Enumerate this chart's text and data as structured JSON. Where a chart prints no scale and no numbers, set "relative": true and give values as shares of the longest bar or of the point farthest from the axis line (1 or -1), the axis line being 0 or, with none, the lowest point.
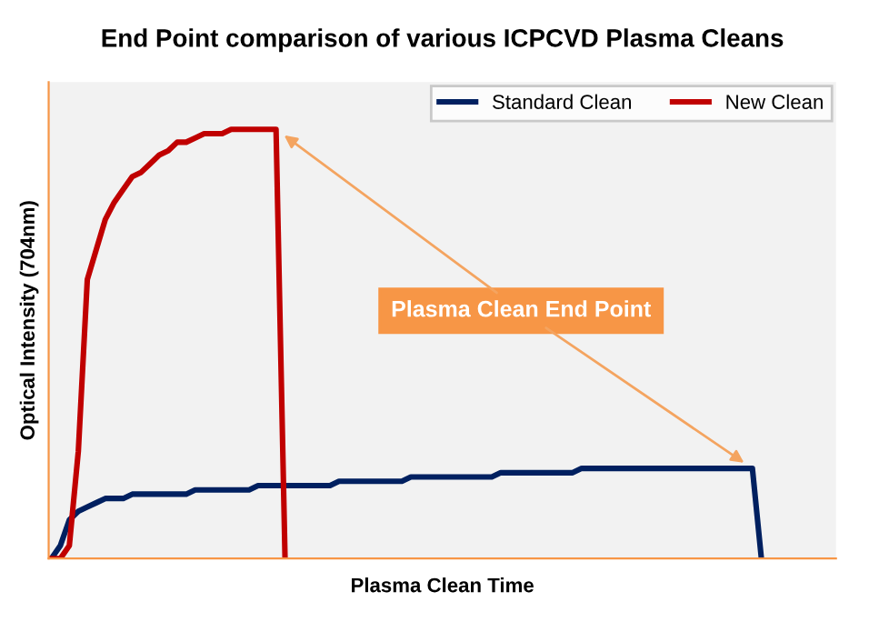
{
  "chart_data": {
    "type": "line",
    "title": "End Point comparison of various ICPCVD Plasma Cleans",
    "xlabel": "Plasma Clean Time",
    "ylabel": "Optical Intensity (704nm)",
    "relative": true,
    "legend": "top right",
    "annotations": [
      "Plasma Clean End Point"
    ],
    "categories": [
      null,
      null,
      null,
      null,
      null,
      null,
      null,
      null,
      null,
      null,
      null,
      null,
      null,
      null,
      null,
      null,
      null,
      null,
      null,
      null,
      null,
      null,
      null,
      null,
      null,
      null,
      null,
      null,
      null,
      null,
      null,
      null,
      null,
      null,
      null,
      null,
      null,
      null,
      null,
      null,
      null,
      null,
      null,
      null,
      null,
      null,
      null,
      null,
      null,
      null,
      null,
      null,
      null,
      null,
      null,
      null,
      null,
      null,
      null,
      null,
      null,
      null,
      null,
      null,
      null,
      null,
      null,
      null,
      null,
      null,
      null,
      null,
      null,
      null,
      null,
      null,
      null,
      null,
      null,
      null,
      null,
      null,
      null,
      null,
      null,
      null,
      null,
      null
    ],
    "series": [
      {
        "name": "Standard Clean",
        "color": "#002060",
        "values": [
          0,
          0.03,
          0.09,
          0.11,
          0.12,
          0.13,
          0.14,
          0.14,
          0.14,
          0.15,
          0.15,
          0.15,
          0.15,
          0.15,
          0.15,
          0.15,
          0.16,
          0.16,
          0.16,
          0.16,
          0.16,
          0.16,
          0.16,
          0.17,
          0.17,
          0.17,
          0.17,
          0.17,
          0.17,
          0.17,
          0.17,
          0.17,
          0.18,
          0.18,
          0.18,
          0.18,
          0.18,
          0.18,
          0.18,
          0.18,
          0.19,
          0.19,
          0.19,
          0.19,
          0.19,
          0.19,
          0.19,
          0.19,
          0.19,
          0.19,
          0.2,
          0.2,
          0.2,
          0.2,
          0.2,
          0.2,
          0.2,
          0.2,
          0.2,
          0.21,
          0.21,
          0.21,
          0.21,
          0.21,
          0.21,
          0.21,
          0.21,
          0.21,
          0.21,
          0.21,
          0.21,
          0.21,
          0.21,
          0.21,
          0.21,
          0.21,
          0.21,
          0.21,
          0.21,
          0,
          null,
          null,
          null,
          null,
          null,
          null,
          null,
          null
        ]
      },
      {
        "name": "New Clean",
        "color": "#c00000",
        "values": [
          0,
          0,
          0.03,
          0.25,
          0.65,
          0.72,
          0.79,
          0.83,
          0.86,
          0.89,
          0.9,
          0.92,
          0.94,
          0.95,
          0.97,
          0.97,
          0.98,
          0.99,
          0.99,
          0.99,
          1,
          1,
          1,
          1,
          1,
          1,
          0,
          null,
          null,
          null,
          null,
          null,
          null,
          null,
          null,
          null,
          null,
          null,
          null,
          null,
          null,
          null,
          null,
          null,
          null,
          null,
          null,
          null,
          null,
          null,
          null,
          null,
          null,
          null,
          null,
          null,
          null,
          null,
          null,
          null,
          null,
          null,
          null,
          null,
          null,
          null,
          null,
          null,
          null,
          null,
          null,
          null,
          null,
          null,
          null,
          null,
          null,
          null,
          null,
          null,
          null,
          null,
          null,
          null,
          null,
          null,
          null,
          null
        ]
      }
    ]
  }
}
